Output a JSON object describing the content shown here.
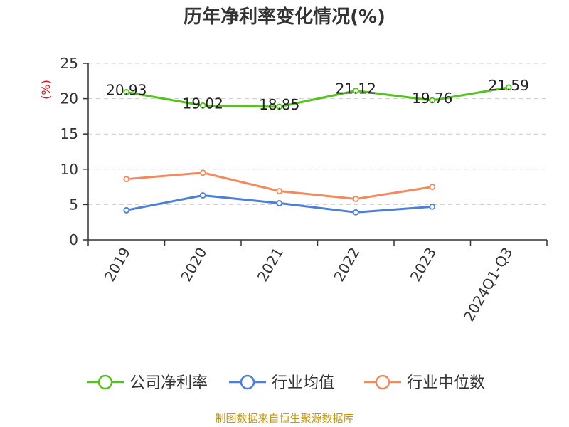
{
  "chart_data": {
    "type": "line",
    "title": "历年净利率变化情况(%)",
    "ylabel": "(%)",
    "xlabel": "",
    "categories": [
      "2019",
      "2020",
      "2021",
      "2022",
      "2023",
      "2024Q1-Q3"
    ],
    "ylim": [
      0,
      25
    ],
    "yticks": [
      0,
      5,
      10,
      15,
      20,
      25
    ],
    "grid": "horizontal-dashed",
    "legend_position": "bottom",
    "series": [
      {
        "name": "公司净利率",
        "color": "#52c41a",
        "values": [
          20.93,
          19.02,
          18.85,
          21.12,
          19.76,
          21.59
        ],
        "labels": [
          "20.93",
          "19.02",
          "18.85",
          "21.12",
          "19.76",
          "21.59"
        ]
      },
      {
        "name": "行业均值",
        "color": "#4a7fdc",
        "values": [
          4.2,
          6.3,
          5.2,
          3.9,
          4.7,
          null
        ]
      },
      {
        "name": "行业中位数",
        "color": "#f5895c",
        "values": [
          8.6,
          9.5,
          6.9,
          5.8,
          7.5,
          null
        ]
      }
    ]
  },
  "source_text": "制图数据来自恒生聚源数据库"
}
